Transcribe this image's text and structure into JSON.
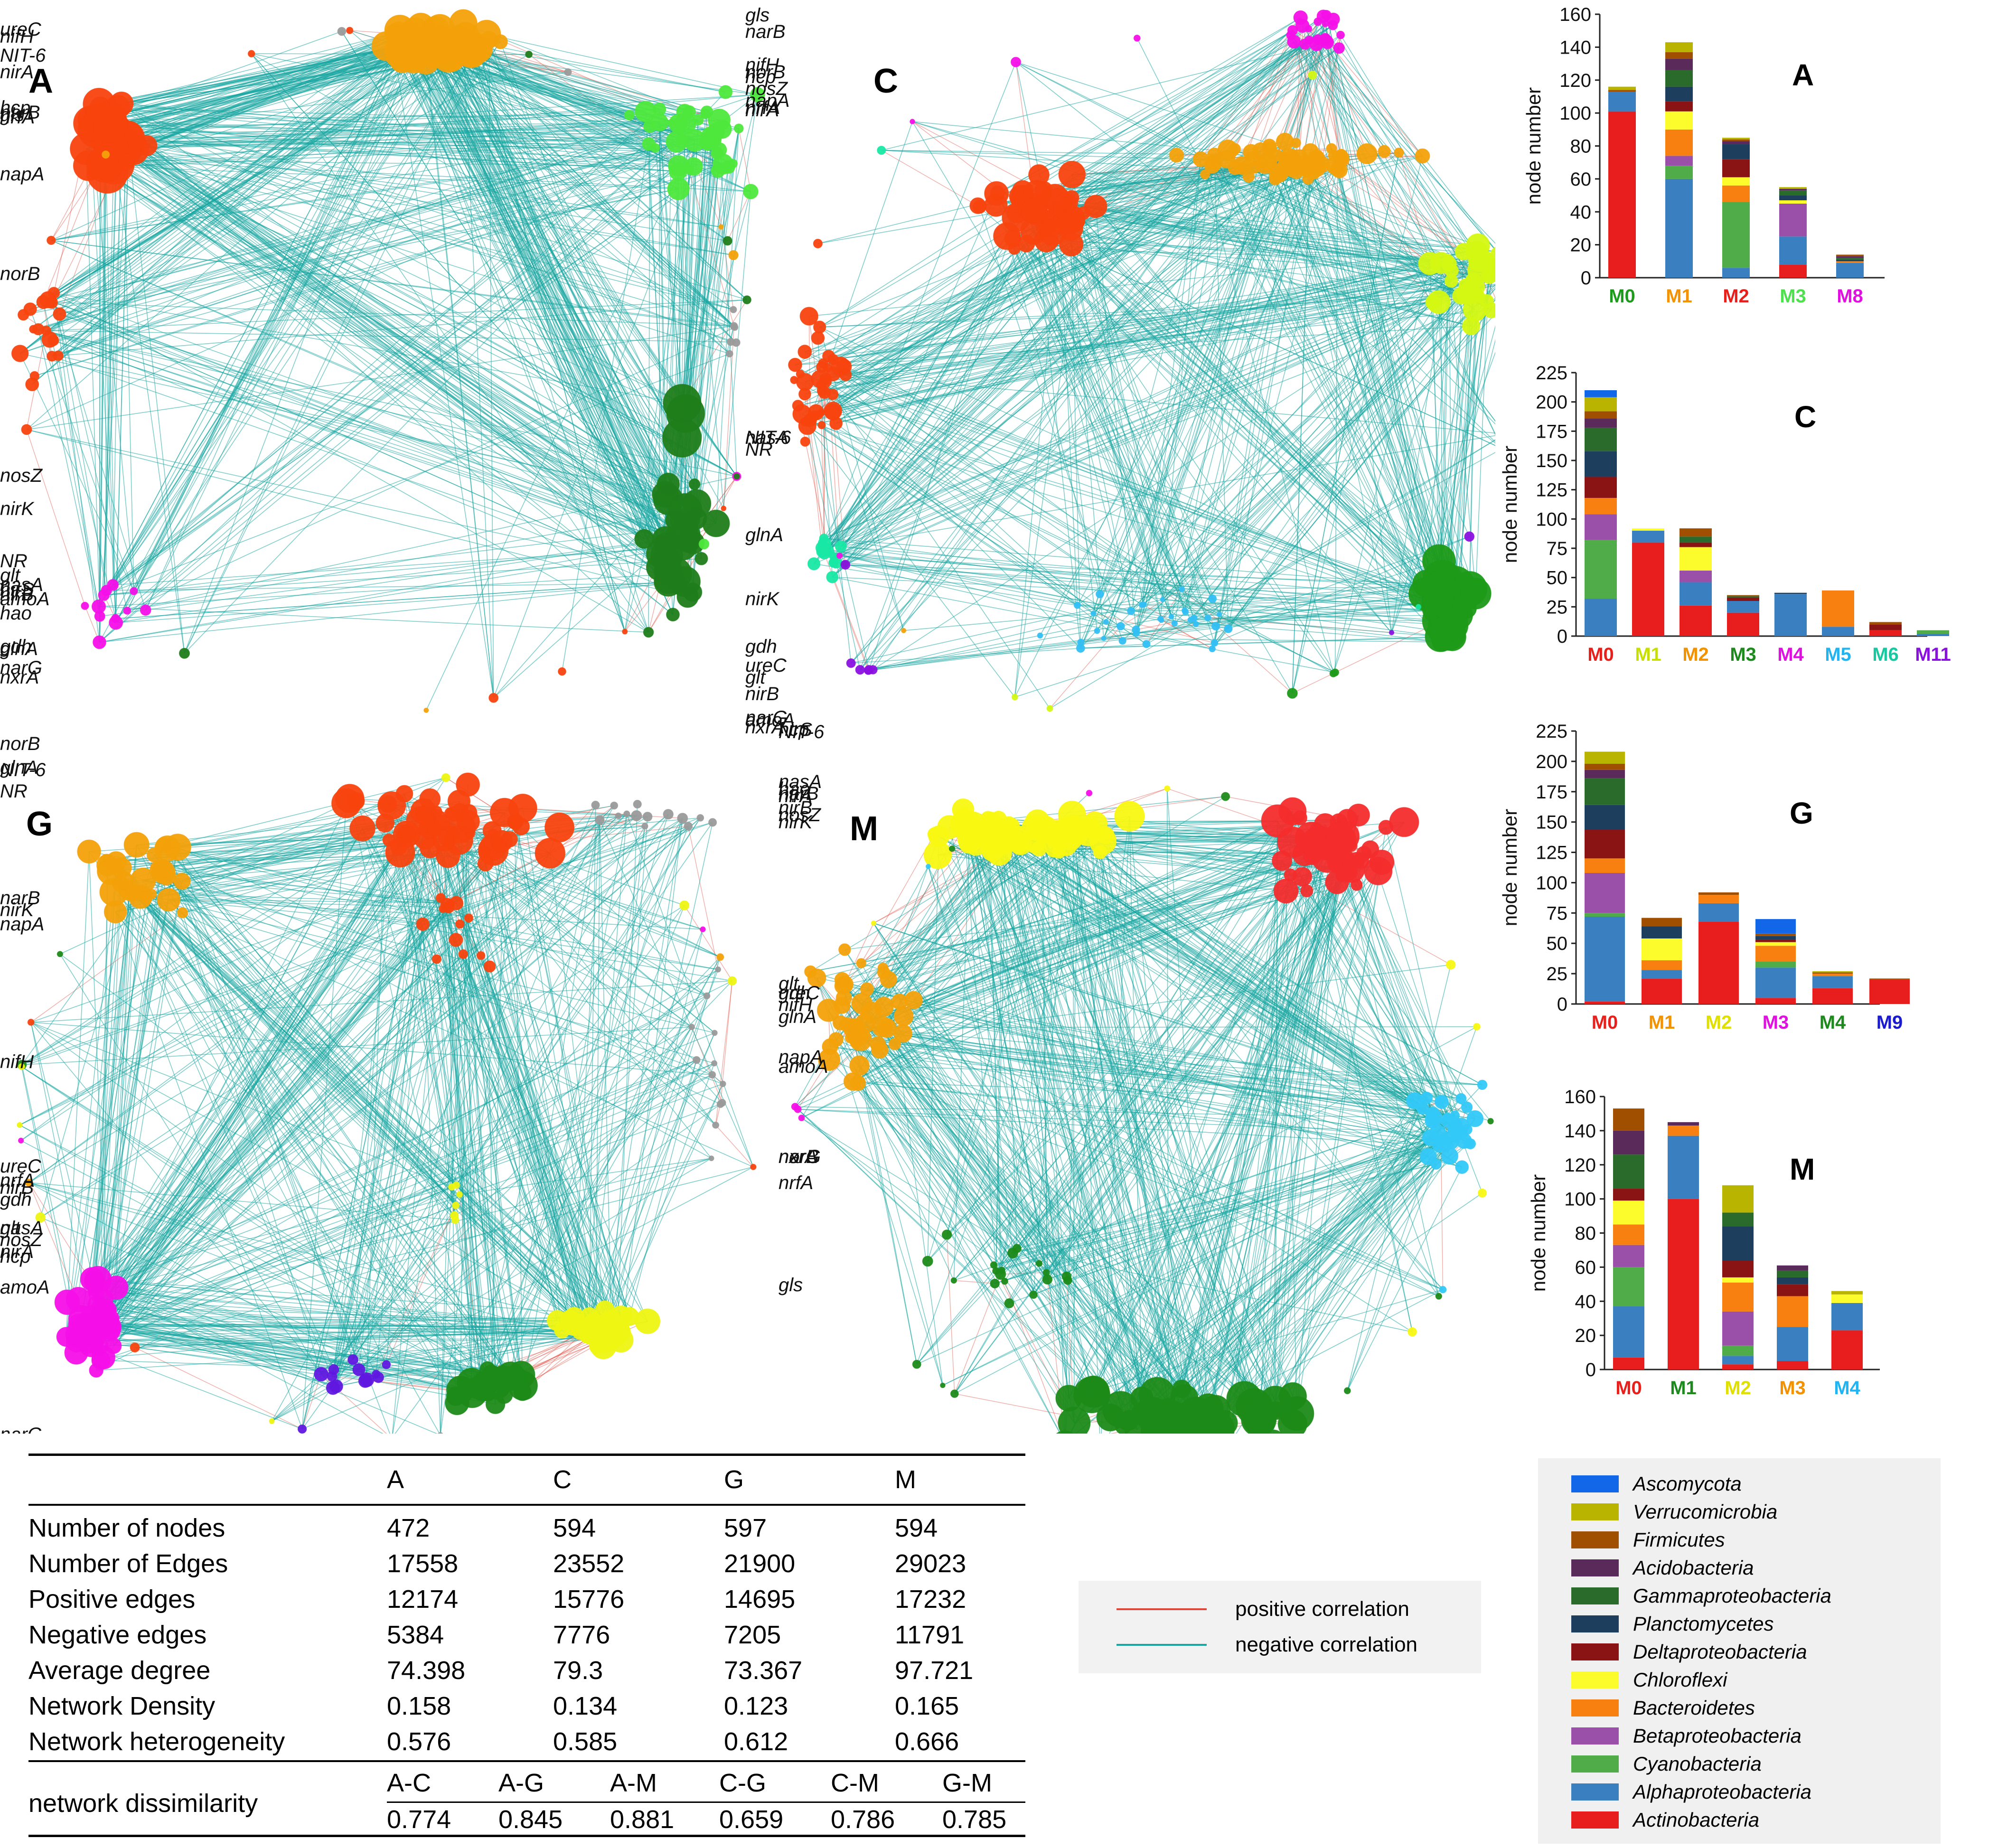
{
  "colors": {
    "positive": "#e0473a",
    "negative": "#17a5a1",
    "grey": "#9a9a9a"
  },
  "networks": [
    {
      "label": "A",
      "genes": [
        "nosZ",
        "nirK",
        "gls",
        "nirA",
        "narB",
        "nrfA",
        "napA",
        "hcp",
        "norB",
        "glnA",
        "ureC",
        "nifH",
        "narG",
        "nxrA",
        "gdh",
        "nasA",
        "nirS",
        "hao",
        "NR",
        "nirB",
        "amoA",
        "glt",
        "NIT-6"
      ]
    },
    {
      "label": "C",
      "genes": [
        "NR",
        "NIT-6",
        "glnA",
        "nirK",
        "nrfA",
        "gls",
        "norB",
        "narB",
        "nifH",
        "amoA",
        "nxrA",
        "narG",
        "hcp",
        "nosZ",
        "nirA",
        "napA",
        "glt",
        "nirB",
        "gdh",
        "ureC",
        "nasA"
      ]
    },
    {
      "label": "G",
      "genes": [
        "nirK",
        "nrfA",
        "nosZ",
        "norB",
        "glnA",
        "NR",
        "NIT-6",
        "narB",
        "napA",
        "nifH",
        "glt",
        "nirA",
        "nirB",
        "nasA",
        "ureC",
        "gdh",
        "hcp",
        "amoA",
        "narG",
        "nxrA",
        "gls"
      ]
    },
    {
      "label": "M",
      "genes": [
        "nrfA",
        "hao",
        "nirK",
        "nirA",
        "narB",
        "nosZ",
        "nasA",
        "hcp",
        "nirS",
        "NIT-6",
        "glnA",
        "amoA",
        "nirB",
        "nifH",
        "ureC",
        "glt",
        "gdh",
        "napA",
        "narG",
        "nxrA",
        "norB",
        "gls"
      ]
    }
  ],
  "bar_charts": [
    {
      "label": "A",
      "ylabel": "node number",
      "ylim": [
        0,
        160
      ],
      "yticks": [
        0,
        20,
        40,
        60,
        80,
        100,
        120,
        140,
        160
      ],
      "modules": [
        {
          "name": "M0",
          "color": "#1e9a1e",
          "total": 116
        },
        {
          "name": "M1",
          "color": "#f39200",
          "total": 143
        },
        {
          "name": "M2",
          "color": "#e8201c",
          "total": 85
        },
        {
          "name": "M3",
          "color": "#4fe04f",
          "total": 55
        },
        {
          "name": "M8",
          "color": "#e010e0",
          "total": 14
        }
      ]
    },
    {
      "label": "C",
      "ylabel": "node number",
      "ylim": [
        0,
        225
      ],
      "yticks": [
        0,
        25,
        50,
        75,
        100,
        125,
        150,
        175,
        200,
        225
      ],
      "modules": [
        {
          "name": "M0",
          "color": "#e8201c",
          "total": 210
        },
        {
          "name": "M1",
          "color": "#c8e000",
          "total": 92
        },
        {
          "name": "M2",
          "color": "#f39200",
          "total": 92
        },
        {
          "name": "M3",
          "color": "#1e8a1e",
          "total": 35
        },
        {
          "name": "M4",
          "color": "#e010e0",
          "total": 37
        },
        {
          "name": "M5",
          "color": "#22b4f0",
          "total": 39
        },
        {
          "name": "M6",
          "color": "#18c8a0",
          "total": 12
        },
        {
          "name": "M11",
          "color": "#8a10e0",
          "total": 5
        }
      ]
    },
    {
      "label": "G",
      "ylabel": "node number",
      "ylim": [
        0,
        225
      ],
      "yticks": [
        0,
        25,
        50,
        75,
        100,
        125,
        150,
        175,
        200,
        225
      ],
      "modules": [
        {
          "name": "M0",
          "color": "#e8201c",
          "total": 208
        },
        {
          "name": "M1",
          "color": "#f39200",
          "total": 71
        },
        {
          "name": "M2",
          "color": "#e0e000",
          "total": 92
        },
        {
          "name": "M3",
          "color": "#e010e0",
          "total": 70
        },
        {
          "name": "M4",
          "color": "#1e8a1e",
          "total": 27
        },
        {
          "name": "M9",
          "color": "#1a1ad0",
          "total": 21
        }
      ]
    },
    {
      "label": "M",
      "ylabel": "node number",
      "ylim": [
        0,
        160
      ],
      "yticks": [
        0,
        20,
        40,
        60,
        80,
        100,
        120,
        140,
        160
      ],
      "modules": [
        {
          "name": "M0",
          "color": "#e8201c",
          "total": 153
        },
        {
          "name": "M1",
          "color": "#1e8a1e",
          "total": 145
        },
        {
          "name": "M2",
          "color": "#e0e000",
          "total": 108
        },
        {
          "name": "M3",
          "color": "#f39200",
          "total": 61
        },
        {
          "name": "M4",
          "color": "#22b4f0",
          "total": 46
        }
      ]
    }
  ],
  "chart_data": [
    {
      "type": "bar",
      "title": "A",
      "ylabel": "node number",
      "categories": [
        "M0",
        "M1",
        "M2",
        "M3",
        "M8"
      ],
      "ylim": [
        0,
        160
      ],
      "series": [
        {
          "name": "Actinobacteria",
          "values": [
            101,
            0,
            0,
            8,
            0
          ]
        },
        {
          "name": "Alphaproteobacteria",
          "values": [
            12,
            60,
            6,
            17,
            9
          ]
        },
        {
          "name": "Cyanobacteria",
          "values": [
            0,
            8,
            40,
            0,
            0
          ]
        },
        {
          "name": "Betaproteobacteria",
          "values": [
            0,
            6,
            0,
            20,
            0
          ]
        },
        {
          "name": "Bacteroidetes",
          "values": [
            0,
            16,
            10,
            0,
            1
          ]
        },
        {
          "name": "Chloroflexi",
          "values": [
            0,
            11,
            5,
            2,
            0
          ]
        },
        {
          "name": "Deltaproteobacteria",
          "values": [
            0,
            6,
            11,
            0,
            0
          ]
        },
        {
          "name": "Planctomycetes",
          "values": [
            0,
            9,
            9,
            3,
            1
          ]
        },
        {
          "name": "Gammaproteobacteria",
          "values": [
            0,
            10,
            0,
            3,
            1
          ]
        },
        {
          "name": "Acidobacteria",
          "values": [
            0,
            7,
            2,
            1,
            1
          ]
        },
        {
          "name": "Firmicutes",
          "values": [
            1,
            4,
            1,
            0,
            1
          ]
        },
        {
          "name": "Verrucomicrobia",
          "values": [
            2,
            6,
            1,
            1,
            0
          ]
        },
        {
          "name": "Ascomycota",
          "values": [
            0,
            0,
            0,
            0,
            0
          ]
        }
      ]
    },
    {
      "type": "bar",
      "title": "C",
      "ylabel": "node number",
      "categories": [
        "M0",
        "M1",
        "M2",
        "M3",
        "M4",
        "M5",
        "M6",
        "M11"
      ],
      "ylim": [
        0,
        225
      ],
      "series": [
        {
          "name": "Actinobacteria",
          "values": [
            0,
            80,
            26,
            20,
            0,
            0,
            5,
            0
          ]
        },
        {
          "name": "Alphaproteobacteria",
          "values": [
            32,
            10,
            20,
            10,
            36,
            8,
            0,
            2
          ]
        },
        {
          "name": "Cyanobacteria",
          "values": [
            50,
            0,
            0,
            0,
            0,
            0,
            0,
            3
          ]
        },
        {
          "name": "Betaproteobacteria",
          "values": [
            22,
            0,
            10,
            0,
            0,
            0,
            0,
            0
          ]
        },
        {
          "name": "Bacteroidetes",
          "values": [
            14,
            0,
            0,
            0,
            0,
            31,
            0,
            0
          ]
        },
        {
          "name": "Chloroflexi",
          "values": [
            0,
            2,
            20,
            0,
            0,
            0,
            0,
            0
          ]
        },
        {
          "name": "Deltaproteobacteria",
          "values": [
            18,
            0,
            4,
            3,
            0,
            0,
            5,
            0
          ]
        },
        {
          "name": "Planctomycetes",
          "values": [
            22,
            0,
            0,
            0,
            1,
            0,
            0,
            0
          ]
        },
        {
          "name": "Gammaproteobacteria",
          "values": [
            20,
            0,
            5,
            1,
            0,
            0,
            0,
            0
          ]
        },
        {
          "name": "Acidobacteria",
          "values": [
            8,
            0,
            0,
            0,
            0,
            0,
            0,
            0
          ]
        },
        {
          "name": "Firmicutes",
          "values": [
            6,
            0,
            7,
            1,
            0,
            0,
            2,
            0
          ]
        },
        {
          "name": "Verrucomicrobia",
          "values": [
            12,
            0,
            0,
            0,
            0,
            0,
            0,
            0
          ]
        },
        {
          "name": "Ascomycota",
          "values": [
            6,
            0,
            0,
            0,
            0,
            0,
            0,
            0
          ]
        }
      ]
    },
    {
      "type": "bar",
      "title": "G",
      "ylabel": "node number",
      "categories": [
        "M0",
        "M1",
        "M2",
        "M3",
        "M4",
        "M9"
      ],
      "ylim": [
        0,
        225
      ],
      "series": [
        {
          "name": "Actinobacteria",
          "values": [
            2,
            21,
            68,
            5,
            13,
            20
          ]
        },
        {
          "name": "Alphaproteobacteria",
          "values": [
            70,
            7,
            15,
            25,
            10,
            0
          ]
        },
        {
          "name": "Cyanobacteria",
          "values": [
            3,
            0,
            0,
            5,
            0,
            0
          ]
        },
        {
          "name": "Betaproteobacteria",
          "values": [
            33,
            0,
            0,
            0,
            0,
            0
          ]
        },
        {
          "name": "Bacteroidetes",
          "values": [
            12,
            8,
            7,
            13,
            2,
            0
          ]
        },
        {
          "name": "Chloroflexi",
          "values": [
            0,
            18,
            0,
            3,
            0,
            0
          ]
        },
        {
          "name": "Deltaproteobacteria",
          "values": [
            24,
            0,
            0,
            2,
            0,
            0
          ]
        },
        {
          "name": "Planctomycetes",
          "values": [
            20,
            10,
            0,
            3,
            0,
            0
          ]
        },
        {
          "name": "Gammaproteobacteria",
          "values": [
            22,
            0,
            0,
            0,
            0,
            0
          ]
        },
        {
          "name": "Acidobacteria",
          "values": [
            7,
            0,
            0,
            0,
            0,
            0
          ]
        },
        {
          "name": "Firmicutes",
          "values": [
            5,
            7,
            2,
            2,
            1,
            1
          ]
        },
        {
          "name": "Verrucomicrobia",
          "values": [
            10,
            0,
            0,
            0,
            1,
            0
          ]
        },
        {
          "name": "Ascomycota",
          "values": [
            0,
            0,
            0,
            12,
            0,
            0
          ]
        }
      ]
    },
    {
      "type": "bar",
      "title": "M",
      "ylabel": "node number",
      "categories": [
        "M0",
        "M1",
        "M2",
        "M3",
        "M4"
      ],
      "ylim": [
        0,
        160
      ],
      "series": [
        {
          "name": "Actinobacteria",
          "values": [
            7,
            100,
            3,
            5,
            23
          ]
        },
        {
          "name": "Alphaproteobacteria",
          "values": [
            30,
            37,
            5,
            20,
            16
          ]
        },
        {
          "name": "Cyanobacteria",
          "values": [
            23,
            0,
            6,
            0,
            0
          ]
        },
        {
          "name": "Betaproteobacteria",
          "values": [
            13,
            0,
            20,
            0,
            0
          ]
        },
        {
          "name": "Bacteroidetes",
          "values": [
            12,
            6,
            17,
            18,
            0
          ]
        },
        {
          "name": "Chloroflexi",
          "values": [
            14,
            0,
            3,
            0,
            5
          ]
        },
        {
          "name": "Deltaproteobacteria",
          "values": [
            7,
            0,
            10,
            7,
            0
          ]
        },
        {
          "name": "Planctomycetes",
          "values": [
            0,
            0,
            20,
            4,
            0
          ]
        },
        {
          "name": "Gammaproteobacteria",
          "values": [
            20,
            0,
            8,
            4,
            0
          ]
        },
        {
          "name": "Acidobacteria",
          "values": [
            14,
            2,
            0,
            3,
            0
          ]
        },
        {
          "name": "Firmicutes",
          "values": [
            13,
            0,
            0,
            0,
            0
          ]
        },
        {
          "name": "Verrucomicrobia",
          "values": [
            0,
            0,
            16,
            0,
            2
          ]
        },
        {
          "name": "Ascomycota",
          "values": [
            0,
            0,
            0,
            0,
            0
          ]
        }
      ]
    }
  ],
  "edge_legend": {
    "positive": "positive correlation",
    "negative": "negative correlation"
  },
  "taxa_legend": [
    {
      "name": "Ascomycota",
      "color": "#1266e8"
    },
    {
      "name": "Verrucomicrobia",
      "color": "#b8b400"
    },
    {
      "name": "Firmicutes",
      "color": "#a04e00"
    },
    {
      "name": "Acidobacteria",
      "color": "#5a2a5a"
    },
    {
      "name": "Gammaproteobacteria",
      "color": "#2a6a2a"
    },
    {
      "name": "Planctomycetes",
      "color": "#1e3e5e"
    },
    {
      "name": "Deltaproteobacteria",
      "color": "#8a1414"
    },
    {
      "name": "Chloroflexi",
      "color": "#fcfc2c"
    },
    {
      "name": "Bacteroidetes",
      "color": "#f88010"
    },
    {
      "name": "Betaproteobacteria",
      "color": "#9a50a8"
    },
    {
      "name": "Cyanobacteria",
      "color": "#4fac48"
    },
    {
      "name": "Alphaproteobacteria",
      "color": "#3a80c0"
    },
    {
      "name": "Actinobacteria",
      "color": "#e81e1e"
    }
  ],
  "stats_table": {
    "columns": [
      "A",
      "C",
      "G",
      "M"
    ],
    "rows": [
      {
        "label": "Number of nodes",
        "values": [
          "472",
          "594",
          "597",
          "594"
        ]
      },
      {
        "label": "Number of Edges",
        "values": [
          "17558",
          "23552",
          "21900",
          "29023"
        ]
      },
      {
        "label": "Positive edges",
        "values": [
          "12174",
          "15776",
          "14695",
          "17232"
        ]
      },
      {
        "label": "Negative edges",
        "values": [
          "5384",
          "7776",
          "7205",
          "11791"
        ]
      },
      {
        "label": "Average degree",
        "values": [
          "74.398",
          "79.3",
          "73.367",
          "97.721"
        ]
      },
      {
        "label": "Network Density",
        "values": [
          "0.158",
          "0.134",
          "0.123",
          "0.165"
        ]
      },
      {
        "label": "Network heterogeneity",
        "values": [
          "0.576",
          "0.585",
          "0.612",
          "0.666"
        ]
      }
    ],
    "dissimilarity": {
      "label": "network dissimilarity",
      "pairs": [
        "A-C",
        "A-G",
        "A-M",
        "C-G",
        "C-M",
        "G-M"
      ],
      "values": [
        "0.774",
        "0.845",
        "0.881",
        "0.659",
        "0.786",
        "0.785"
      ]
    }
  }
}
